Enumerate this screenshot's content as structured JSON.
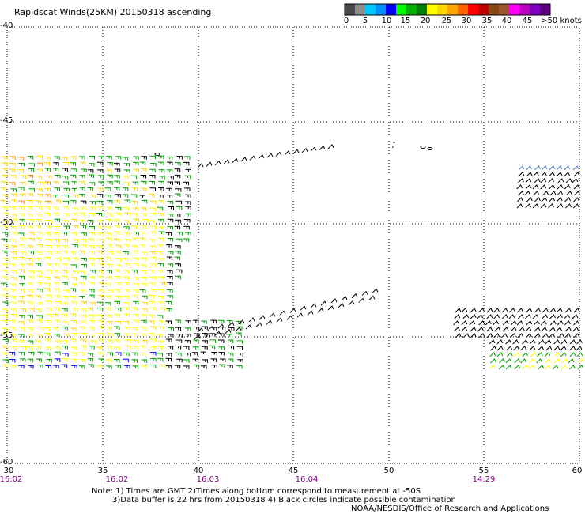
{
  "title": "Rapidscat Winds(25KM) 20150318 ascending",
  "legend": {
    "labels": [
      "0",
      "5",
      "10",
      "15",
      "20",
      "25",
      "30",
      "35",
      "40",
      "45",
      ">50 knots"
    ],
    "colors": [
      "#4a4a4a",
      "#8c8c8c",
      "#00c8ff",
      "#0090ff",
      "#0000ff",
      "#00ff00",
      "#00b000",
      "#008000",
      "#ffff00",
      "#ffd700",
      "#ffa500",
      "#ff6600",
      "#ff0000",
      "#c00000",
      "#8b4513",
      "#a0522d",
      "#ff00ff",
      "#c000c0",
      "#8000c0",
      "#5a0080"
    ]
  },
  "axes": {
    "lat_labels": [
      "-40",
      "-45",
      "-50",
      "-55",
      "-60"
    ],
    "lon_labels": [
      "30",
      "35",
      "40",
      "45",
      "50",
      "55",
      "60"
    ],
    "time_labels": [
      "16:02",
      "16:02",
      "16:03",
      "16:04",
      "14:29"
    ]
  },
  "notes": {
    "line1": "Note: 1) Times are GMT 2)Times along bottom correspond to measurement at -50S",
    "line2": "3)Data buffer is 22 hrs from 20150318 4) Black circles indicate possible contamination",
    "line3": "NOAA/NESDIS/Office of Research and Applications"
  },
  "map_data": {
    "lon_range": [
      30,
      60
    ],
    "lat_range": [
      -40,
      -60
    ]
  }
}
